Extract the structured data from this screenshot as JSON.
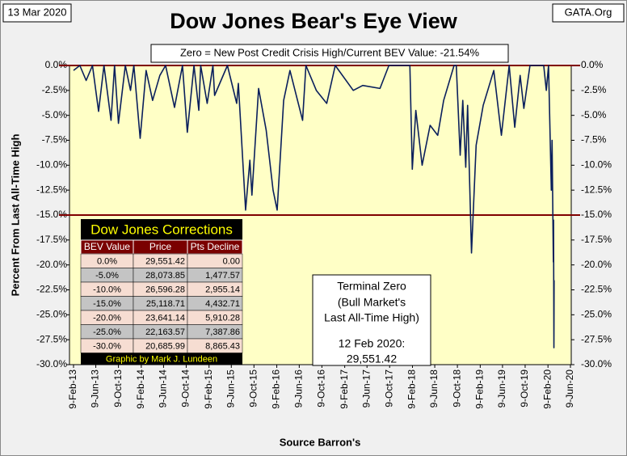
{
  "chart_data": {
    "type": "line",
    "title": "Dow Jones Bear's Eye View",
    "date_label": "13 Mar 2020",
    "source_label": "GATA.Org",
    "subtitle": "Zero = New Post Credit Crisis High/Current BEV Value:  -21.54%",
    "ylabel": "Percent From Last All-Time High",
    "xlabel": "Source Barron's",
    "ylim": [
      -30,
      0
    ],
    "yticks": [
      {
        "value": 0,
        "label": "0.0%"
      },
      {
        "value": -2.5,
        "label": "-2.5%"
      },
      {
        "value": -5,
        "label": "-5.0%"
      },
      {
        "value": -7.5,
        "label": "-7.5%"
      },
      {
        "value": -10,
        "label": "-10.0%"
      },
      {
        "value": -12.5,
        "label": "-12.5%"
      },
      {
        "value": -15,
        "label": "-15.0%"
      },
      {
        "value": -17.5,
        "label": "-17.5%"
      },
      {
        "value": -20,
        "label": "-20.0%"
      },
      {
        "value": -22.5,
        "label": "-22.5%"
      },
      {
        "value": -25,
        "label": "-25.0%"
      },
      {
        "value": -27.5,
        "label": "-27.5%"
      },
      {
        "value": -30,
        "label": "-30.0%"
      }
    ],
    "y2lim": [
      -30,
      0
    ],
    "y2ticks": [
      {
        "value": 0,
        "label": "0.0%"
      },
      {
        "value": -2.5,
        "label": "-2.5%"
      },
      {
        "value": -5,
        "label": "-5.0%"
      },
      {
        "value": -7.5,
        "label": "-7.5%"
      },
      {
        "value": -10,
        "label": "-10.0%"
      },
      {
        "value": -12.5,
        "label": "-12.5%"
      },
      {
        "value": -15,
        "label": "-15.0%"
      },
      {
        "value": -17.5,
        "label": "-17.5%"
      },
      {
        "value": -20,
        "label": "-20.0%"
      },
      {
        "value": -22.5,
        "label": "-22.5%"
      },
      {
        "value": -25,
        "label": "-25.0%"
      },
      {
        "value": -27.5,
        "label": "-27.5%"
      },
      {
        "value": -30,
        "label": "-30.0%"
      }
    ],
    "xlim": [
      "2013-02-09",
      "2020-06-09"
    ],
    "xticks": [
      {
        "value": "2013-02-09",
        "label": "9-Feb-13"
      },
      {
        "value": "2013-06-09",
        "label": "9-Jun-13"
      },
      {
        "value": "2013-10-09",
        "label": "9-Oct-13"
      },
      {
        "value": "2014-02-09",
        "label": "9-Feb-14"
      },
      {
        "value": "2014-06-09",
        "label": "9-Jun-14"
      },
      {
        "value": "2014-10-09",
        "label": "9-Oct-14"
      },
      {
        "value": "2015-02-09",
        "label": "9-Feb-15"
      },
      {
        "value": "2015-06-09",
        "label": "9-Jun-15"
      },
      {
        "value": "2015-10-09",
        "label": "9-Oct-15"
      },
      {
        "value": "2016-02-09",
        "label": "9-Feb-16"
      },
      {
        "value": "2016-06-09",
        "label": "9-Jun-16"
      },
      {
        "value": "2016-10-09",
        "label": "9-Oct-16"
      },
      {
        "value": "2017-02-09",
        "label": "9-Feb-17"
      },
      {
        "value": "2017-06-09",
        "label": "9-Jun-17"
      },
      {
        "value": "2017-10-09",
        "label": "9-Oct-17"
      },
      {
        "value": "2018-02-09",
        "label": "9-Feb-18"
      },
      {
        "value": "2018-06-09",
        "label": "9-Jun-18"
      },
      {
        "value": "2018-10-09",
        "label": "9-Oct-18"
      },
      {
        "value": "2019-02-09",
        "label": "9-Feb-19"
      },
      {
        "value": "2019-06-09",
        "label": "9-Jun-19"
      },
      {
        "value": "2019-10-09",
        "label": "9-Oct-19"
      },
      {
        "value": "2020-02-09",
        "label": "9-Feb-20"
      },
      {
        "value": "2020-06-09",
        "label": "9-Jun-20"
      }
    ],
    "reference_lines": [
      0,
      -15
    ],
    "reference_color": "#800000",
    "plot_background": "#ffffc6",
    "x": [
      "2013-02-09",
      "2013-03-15",
      "2013-04-18",
      "2013-05-22",
      "2013-06-24",
      "2013-07-23",
      "2013-08-30",
      "2013-09-18",
      "2013-10-09",
      "2013-11-15",
      "2013-12-13",
      "2013-12-31",
      "2014-02-03",
      "2014-03-07",
      "2014-04-11",
      "2014-05-20",
      "2014-06-20",
      "2014-08-07",
      "2014-09-19",
      "2014-10-15",
      "2014-11-20",
      "2014-12-16",
      "2014-12-26",
      "2015-01-30",
      "2015-03-02",
      "2015-03-11",
      "2015-05-19",
      "2015-07-08",
      "2015-07-17",
      "2015-08-25",
      "2015-09-17",
      "2015-09-28",
      "2015-11-03",
      "2015-12-14",
      "2016-01-20",
      "2016-02-11",
      "2016-03-17",
      "2016-04-20",
      "2016-06-27",
      "2016-07-15",
      "2016-09-09",
      "2016-11-04",
      "2016-12-20",
      "2017-03-27",
      "2017-05-17",
      "2017-08-18",
      "2017-10-05",
      "2018-01-26",
      "2018-02-08",
      "2018-02-27",
      "2018-04-02",
      "2018-05-15",
      "2018-06-25",
      "2018-07-27",
      "2018-09-21",
      "2018-10-03",
      "2018-10-24",
      "2018-11-07",
      "2018-11-23",
      "2018-12-03",
      "2018-12-24",
      "2019-01-18",
      "2019-02-25",
      "2019-04-23",
      "2019-06-03",
      "2019-07-15",
      "2019-08-14",
      "2019-09-12",
      "2019-10-02",
      "2019-11-04",
      "2020-01-17",
      "2020-01-31",
      "2020-02-12",
      "2020-02-27",
      "2020-03-02",
      "2020-03-09",
      "2020-03-10",
      "2020-03-12",
      "2020-03-13"
    ],
    "series": [
      {
        "name": "BEV",
        "color": "#0a1f5c",
        "values": [
          -0.5,
          0,
          -1.5,
          0,
          -4.6,
          0,
          -5.5,
          0,
          -5.8,
          0,
          -2.5,
          0,
          -7.3,
          -0.5,
          -3.5,
          -1,
          0,
          -4.2,
          0,
          -6.7,
          0,
          -4.5,
          0,
          -3.8,
          0,
          -3,
          0,
          -3.8,
          -1.8,
          -14.5,
          -9.5,
          -13,
          -2.3,
          -6.5,
          -12.5,
          -14.5,
          -3.5,
          -0.5,
          -5.5,
          0,
          -2.5,
          -3.8,
          0,
          -2.5,
          -2,
          -2.3,
          0,
          0,
          -10.4,
          -4.5,
          -10,
          -6,
          -7,
          -3.5,
          0,
          0,
          -9,
          -3.5,
          -10.2,
          -4,
          -18.8,
          -8,
          -4,
          -0.5,
          -7,
          0,
          -6.2,
          -1,
          -4.3,
          0,
          0,
          -2.5,
          0,
          -12.5,
          -7.5,
          -19.7,
          -15.5,
          -28.3,
          -21.54
        ]
      }
    ],
    "table": {
      "title": "Dow Jones Corrections",
      "columns": [
        "BEV Value",
        "Price",
        "Pts Decline"
      ],
      "rows": [
        [
          "0.0%",
          "29,551.42",
          "0.00"
        ],
        [
          "-5.0%",
          "28,073.85",
          "1,477.57"
        ],
        [
          "-10.0%",
          "26,596.28",
          "2,955.14"
        ],
        [
          "-15.0%",
          "25,118.71",
          "4,432.71"
        ],
        [
          "-20.0%",
          "23,641.14",
          "5,910.28"
        ],
        [
          "-25.0%",
          "22,163.57",
          "7,387.86"
        ],
        [
          "-30.0%",
          "20,685.99",
          "8,865.43"
        ]
      ],
      "footer": "Graphic by Mark J. Lundeen"
    },
    "note": [
      "Terminal Zero",
      "(Bull Market's",
      "Last All-Time High)",
      "12 Feb 2020:",
      "29,551.42"
    ]
  }
}
